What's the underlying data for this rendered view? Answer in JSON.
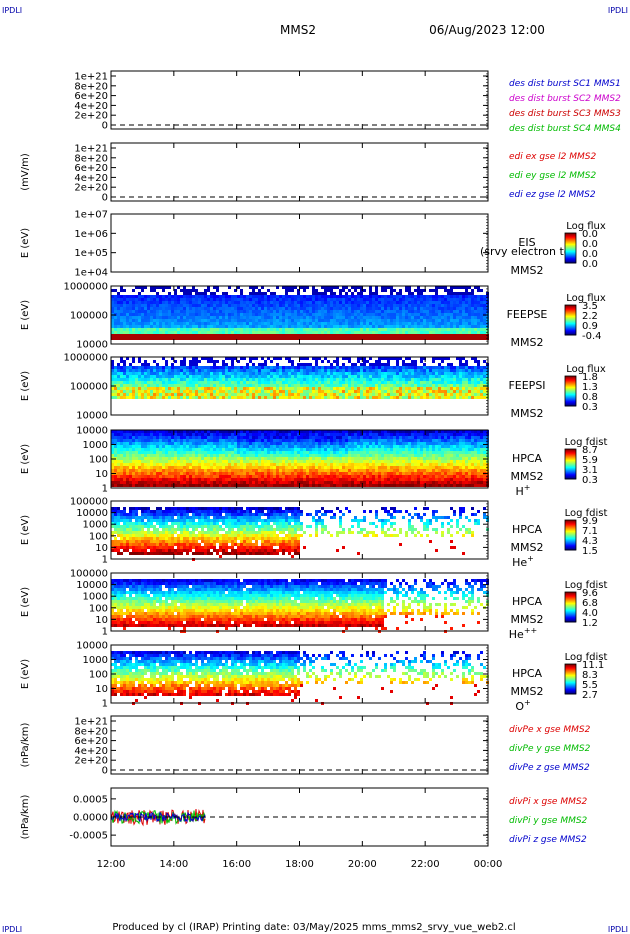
{
  "header": {
    "corner_label_top_left": "IPDLI",
    "corner_label_top_right": "IPDLI",
    "corner_label_bottom_left": "IPDLI",
    "corner_label_bottom_right": "IPDLI",
    "spacecraft": "MMS2",
    "datetime": "06/Aug/2023 12:00"
  },
  "footer": {
    "text": "Produced by cl (IRAP)   Printing date: 03/May/2025   mms_mms2_srvy_vue_web2.cl"
  },
  "time_axis": {
    "tick_labels": [
      "12:00",
      "14:00",
      "16:00",
      "18:00",
      "20:00",
      "22:00",
      "00:00"
    ],
    "start_hour": 12,
    "end_hour": 24
  },
  "colors": {
    "mms1": "#0000cc",
    "mms2": "#cc00cc",
    "mms3": "#cc0000",
    "mms4": "#00bb00",
    "x_component": "#dd0000",
    "y_component": "#00bb00",
    "z_component": "#0000cc"
  },
  "chart_data": [
    {
      "id": "panel1",
      "type": "line",
      "ylabel": "",
      "ytick_labels": [
        "1e+21",
        "8e+20",
        "6e+20",
        "4e+20",
        "2e+20",
        "0"
      ],
      "legend": [
        {
          "text": "des dist burst SC1 MMS1",
          "color": "#0000cc"
        },
        {
          "text": "des dist burst SC2 MMS2",
          "color": "#cc00cc"
        },
        {
          "text": "des dist burst SC3 MMS3",
          "color": "#cc0000"
        },
        {
          "text": "des dist burst SC4 MMS4",
          "color": "#00bb00"
        }
      ],
      "zero_line": true
    },
    {
      "id": "panel2",
      "type": "line",
      "ylabel": "(mV/m)",
      "ytick_labels": [
        "1e+21",
        "8e+20",
        "6e+20",
        "4e+20",
        "2e+20",
        "0"
      ],
      "legend": [
        {
          "text": "edi ex gse l2 MMS2",
          "color": "#dd0000"
        },
        {
          "text": "edi ey gse l2 MMS2",
          "color": "#00bb00"
        },
        {
          "text": "edi ez gse l2 MMS2",
          "color": "#0000cc"
        }
      ],
      "zero_line": true
    },
    {
      "id": "panel3",
      "type": "heatmap",
      "ylabel": "E (eV)",
      "ytick_labels": [
        "1e+07",
        "1e+06",
        "1e+05",
        "1e+04"
      ],
      "instrument": [
        "EIS",
        "MMS2"
      ],
      "overlay_text": "(srvy electron to",
      "colorbar": {
        "title": "Log flux",
        "labels": [
          "0.0",
          "0.0",
          "0.0",
          "0.0"
        ]
      },
      "spectrogram": "none"
    },
    {
      "id": "panel4",
      "type": "heatmap",
      "ylabel": "E (eV)",
      "ytick_labels": [
        "1000000",
        "100000",
        "10000"
      ],
      "instrument": [
        "FEEPSE",
        "MMS2"
      ],
      "colorbar": {
        "title": "Log flux",
        "labels": [
          "3.5",
          "2.2",
          "0.9",
          "-0.4"
        ]
      },
      "spectrogram": "feepse"
    },
    {
      "id": "panel5",
      "type": "heatmap",
      "ylabel": "E (eV)",
      "ytick_labels": [
        "1000000",
        "100000",
        "10000"
      ],
      "instrument": [
        "FEEPSI",
        "MMS2"
      ],
      "colorbar": {
        "title": "Log flux",
        "labels": [
          "1.8",
          "1.3",
          "0.8",
          "0.3"
        ]
      },
      "spectrogram": "feepsi"
    },
    {
      "id": "panel6",
      "type": "heatmap",
      "ylabel": "E (eV)",
      "ytick_labels": [
        "10000",
        "1000",
        "100",
        "10",
        "1"
      ],
      "instrument": [
        "HPCA",
        "MMS2"
      ],
      "species": "H",
      "species_sup": "+",
      "colorbar": {
        "title": "Log fdist",
        "labels": [
          "8.7",
          "5.9",
          "3.1",
          "0.3"
        ]
      },
      "spectrogram": "hplus"
    },
    {
      "id": "panel7",
      "type": "heatmap",
      "ylabel": "E (eV)",
      "ytick_labels": [
        "100000",
        "10000",
        "1000",
        "100",
        "10",
        "1"
      ],
      "instrument": [
        "HPCA",
        "MMS2"
      ],
      "species": "He",
      "species_sup": "+",
      "colorbar": {
        "title": "Log fdist",
        "labels": [
          "9.9",
          "7.1",
          "4.3",
          "1.5"
        ]
      },
      "spectrogram": "heplus"
    },
    {
      "id": "panel8",
      "type": "heatmap",
      "ylabel": "E (eV)",
      "ytick_labels": [
        "100000",
        "10000",
        "1000",
        "100",
        "10",
        "1"
      ],
      "instrument": [
        "HPCA",
        "MMS2"
      ],
      "species": "He",
      "species_sup": "++",
      "colorbar": {
        "title": "Log fdist",
        "labels": [
          "9.6",
          "6.8",
          "4.0",
          "1.2"
        ]
      },
      "spectrogram": "heplusplus"
    },
    {
      "id": "panel9",
      "type": "heatmap",
      "ylabel": "E (eV)",
      "ytick_labels": [
        "10000",
        "1000",
        "100",
        "10",
        "1"
      ],
      "instrument": [
        "HPCA",
        "MMS2"
      ],
      "species": "O",
      "species_sup": "+",
      "colorbar": {
        "title": "Log fdist",
        "labels": [
          "11.1",
          "8.3",
          "5.5",
          "2.7"
        ]
      },
      "spectrogram": "oplus"
    },
    {
      "id": "panel10",
      "type": "line",
      "ylabel": "(nPa/km)",
      "ytick_labels": [
        "1e+21",
        "8e+20",
        "6e+20",
        "4e+20",
        "2e+20",
        "0"
      ],
      "legend": [
        {
          "text": "divPe x gse MMS2",
          "color": "#dd0000"
        },
        {
          "text": "divPe y gse MMS2",
          "color": "#00bb00"
        },
        {
          "text": "divPe z gse MMS2",
          "color": "#0000cc"
        }
      ],
      "zero_line": true
    },
    {
      "id": "panel11",
      "type": "line",
      "ylabel": "(nPa/km)",
      "ytick_labels": [
        "0.0005",
        "0.0000",
        "-0.0005"
      ],
      "ytick_values": [
        0.0005,
        0.0,
        -0.0005
      ],
      "ylim": [
        -0.0008,
        0.0008
      ],
      "legend": [
        {
          "text": "divPi x gse MMS2",
          "color": "#dd0000"
        },
        {
          "text": "divPi y gse MMS2",
          "color": "#00bb00"
        },
        {
          "text": "divPi z gse MMS2",
          "color": "#0000cc"
        }
      ],
      "zero_line": true,
      "data_end_hour": 15.0,
      "noise_amplitude": {
        "x": 0.00022,
        "y": 0.00018,
        "z": 0.00012
      }
    }
  ]
}
